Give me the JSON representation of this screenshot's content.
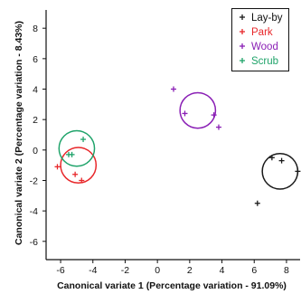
{
  "chart_data": {
    "type": "scatter",
    "title": "",
    "xlabel": "Canonical variate 1 (Percentage variation - 91.09%)",
    "ylabel": "Canonical variate 2 (Percentage variation - 8.43%)",
    "xlim": [
      -6.9,
      8.9
    ],
    "ylim": [
      -7.2,
      9.2
    ],
    "xticks": [
      -6,
      -4,
      -2,
      0,
      2,
      4,
      6,
      8
    ],
    "yticks": [
      -6,
      -4,
      -2,
      0,
      2,
      4,
      6,
      8
    ],
    "xtick_labels": [
      "-6",
      "-4",
      "-2",
      "0",
      "2",
      "4",
      "6",
      "8"
    ],
    "ytick_labels": [
      "-6",
      "-4",
      "-2",
      "0",
      "2",
      "4",
      "6",
      "8"
    ],
    "grid": false,
    "legend_position": "top-right",
    "marker": "+",
    "series": [
      {
        "name": "Lay-by",
        "color": "#1a1a1a",
        "points": [
          [
            7.1,
            -0.5
          ],
          [
            7.7,
            -0.7
          ],
          [
            8.7,
            -1.4
          ],
          [
            6.2,
            -3.5
          ]
        ],
        "circle": {
          "cx": 7.6,
          "cy": -1.4,
          "r": 1.1
        }
      },
      {
        "name": "Park",
        "color": "#e8272a",
        "points": [
          [
            -6.2,
            -1.1
          ],
          [
            -5.1,
            -1.6
          ],
          [
            -4.7,
            -2.0
          ]
        ],
        "circle": {
          "cx": -4.9,
          "cy": -1.0,
          "r": 1.1
        }
      },
      {
        "name": "Wood",
        "color": "#8a1fb5",
        "points": [
          [
            1.0,
            4.0
          ],
          [
            1.7,
            2.4
          ],
          [
            3.5,
            2.3
          ],
          [
            3.8,
            1.5
          ]
        ],
        "circle": {
          "cx": 2.5,
          "cy": 2.6,
          "r": 1.1
        }
      },
      {
        "name": "Scrub",
        "color": "#1fa36a",
        "points": [
          [
            -4.6,
            0.7
          ],
          [
            -5.3,
            -0.3
          ],
          [
            -5.5,
            -0.3
          ]
        ],
        "circle": {
          "cx": -5.0,
          "cy": 0.1,
          "r": 1.1
        }
      }
    ]
  }
}
